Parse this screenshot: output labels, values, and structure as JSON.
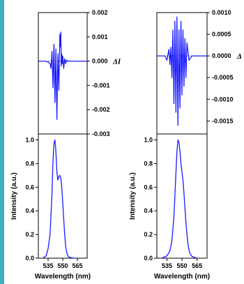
{
  "colors": {
    "trace": "#1a1aff",
    "left_border": "#3fb0c0",
    "axis": "#000000"
  },
  "chart_data": [
    {
      "panel": "left-top",
      "type": "line",
      "y_right_label": "ΔI",
      "ylim": [
        -0.003,
        0.002
      ],
      "y_ticks": [
        "0.002",
        "0.001",
        "0.000",
        "-0.001",
        "-0.002",
        "-0.003"
      ],
      "y_tick_values": [
        0.002,
        0.001,
        0.0,
        -0.001,
        -0.002,
        -0.003
      ],
      "xlim": [
        525,
        575
      ],
      "zero_line": "dotted",
      "x": [
        525,
        533,
        535,
        537,
        538,
        539,
        540,
        541,
        542,
        543,
        544,
        545,
        546,
        547,
        547.5,
        548,
        548.5,
        549,
        549.5,
        550,
        551,
        552,
        553,
        554,
        555,
        557,
        560,
        575
      ],
      "y": [
        0,
        0,
        -5e-05,
        -0.0001,
        -0.0003,
        0.0004,
        -0.0011,
        0.0007,
        -0.0017,
        0.0005,
        -0.0024,
        0.0003,
        -0.0012,
        0.0011,
        0.0006,
        0.0012,
        -0.0002,
        0.0003,
        -0.0001,
        0.0002,
        -0.0003,
        0.0001,
        -0.0001,
        5e-05,
        0,
        0,
        0,
        0
      ]
    },
    {
      "panel": "left-bottom",
      "type": "line",
      "ylabel": "Intensity (a.u.)",
      "xlabel": "Wavelength (nm)",
      "ylim": [
        0.0,
        1.05
      ],
      "y_ticks": [
        "1.0",
        "0.8",
        "0.6",
        "0.4",
        "0.2",
        "0.0"
      ],
      "y_tick_values": [
        1.0,
        0.8,
        0.6,
        0.4,
        0.2,
        0.0
      ],
      "xlim": [
        525,
        575
      ],
      "x_ticks": [
        "535",
        "550",
        "565"
      ],
      "x_tick_values": [
        535,
        550,
        565
      ],
      "x": [
        530,
        533,
        535,
        537,
        539,
        540,
        541,
        542,
        543,
        544,
        545,
        546,
        547,
        548,
        549,
        550,
        551,
        552,
        553,
        554,
        555,
        556,
        558,
        560,
        563
      ],
      "y": [
        0.005,
        0.02,
        0.08,
        0.2,
        0.55,
        0.82,
        0.97,
        1.0,
        0.9,
        0.73,
        0.66,
        0.69,
        0.7,
        0.68,
        0.6,
        0.47,
        0.33,
        0.2,
        0.1,
        0.05,
        0.025,
        0.012,
        0.005,
        0.002,
        0.0
      ]
    },
    {
      "panel": "right-top",
      "type": "line",
      "y_right_label": "Δ",
      "ylim": [
        -0.0018,
        0.001
      ],
      "y_ticks": [
        "0.0010",
        "0.0005",
        "0.0000",
        "-0.0005",
        "-0.0010",
        "-0.0015"
      ],
      "y_tick_values": [
        0.001,
        0.0005,
        0.0,
        -0.0005,
        -0.001,
        -0.0015
      ],
      "xlim": [
        525,
        575
      ],
      "zero_line": "dotted",
      "x": [
        525,
        533,
        535,
        537,
        538,
        539,
        540,
        541,
        542,
        543,
        544,
        545,
        546,
        547,
        548,
        549,
        550,
        551,
        552,
        553,
        554,
        555,
        557,
        560,
        575
      ],
      "y": [
        0,
        0,
        -0.0001,
        0.00015,
        -0.0002,
        0.0002,
        -0.0005,
        0.0006,
        -0.0011,
        0.0008,
        -0.0013,
        0.0009,
        -0.0016,
        0.0006,
        -0.0012,
        0.0008,
        -0.0009,
        0.0006,
        -0.0007,
        0.0004,
        -0.0005,
        0.0003,
        -0.0001,
        0,
        0
      ]
    },
    {
      "panel": "right-bottom",
      "type": "line",
      "ylabel": "Intensity (a.u.)",
      "xlabel": "Wavelength (nm)",
      "ylim": [
        0.0,
        1.05
      ],
      "y_ticks": [
        "1.0",
        "0.8",
        "0.6",
        "0.4",
        "0.2",
        "0.0"
      ],
      "y_tick_values": [
        1.0,
        0.8,
        0.6,
        0.4,
        0.2,
        0.0
      ],
      "xlim": [
        525,
        575
      ],
      "x_ticks": [
        "535",
        "550",
        "565"
      ],
      "x_tick_values": [
        535,
        550,
        565
      ],
      "x": [
        530,
        535,
        538,
        540,
        542,
        544,
        545,
        546,
        547,
        548,
        549,
        550,
        551,
        552,
        553,
        554,
        555,
        556,
        557,
        558,
        560,
        563,
        565
      ],
      "y": [
        0.0,
        0.02,
        0.06,
        0.15,
        0.35,
        0.72,
        0.9,
        1.0,
        0.98,
        0.9,
        0.8,
        0.73,
        0.66,
        0.55,
        0.42,
        0.3,
        0.2,
        0.12,
        0.07,
        0.04,
        0.015,
        0.005,
        0.0
      ]
    }
  ]
}
